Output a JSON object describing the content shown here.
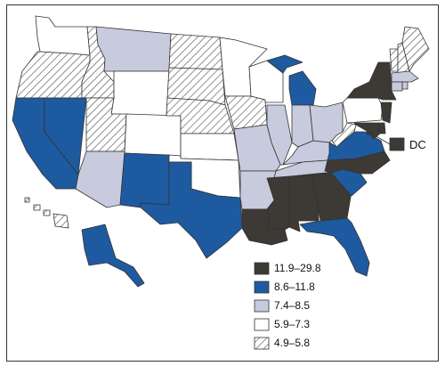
{
  "legend": [
    {
      "range": "11.9–29.8",
      "fill": "#3d3935"
    },
    {
      "range": "8.6–11.8",
      "fill": "#1e5aa0"
    },
    {
      "range": "7.4–8.5",
      "fill": "#c8cadd"
    },
    {
      "range": "5.9–7.3",
      "fill": "#ffffff"
    },
    {
      "range": "4.9–5.8",
      "fill": "hatch"
    }
  ],
  "dc_label": "DC",
  "states": {
    "WA": "5.9–7.3",
    "OR": "4.9–5.8",
    "CA": "8.6–11.8",
    "NV": "8.6–11.8",
    "ID": "4.9–5.8",
    "MT": "7.4–8.5",
    "WY": "5.9–7.3",
    "UT": "4.9–5.8",
    "AZ": "7.4–8.5",
    "CO": "5.9–7.3",
    "NM": "8.6–11.8",
    "ND": "4.9–5.8",
    "SD": "4.9–5.8",
    "NE": "4.9–5.8",
    "KS": "5.9–7.3",
    "OK": "5.9–7.3",
    "TX": "8.6–11.8",
    "MN": "5.9–7.3",
    "IA": "4.9–5.8",
    "MO": "7.4–8.5",
    "AR": "7.4–8.5",
    "LA": "11.9–29.8",
    "WI": "5.9–7.3",
    "IL": "7.4–8.5",
    "MI": "8.6–11.8",
    "IN": "7.4–8.5",
    "OH": "7.4–8.5",
    "KY": "7.4–8.5",
    "TN": "7.4–8.5",
    "MS": "11.9–29.8",
    "AL": "11.9–29.8",
    "GA": "11.9–29.8",
    "FL": "8.6–11.8",
    "SC": "8.6–11.8",
    "NC": "11.9–29.8",
    "VA": "8.6–11.8",
    "WV": "4.9–5.8",
    "PA": "5.9–7.3",
    "NY": "11.9–29.8",
    "VT": "4.9–5.8",
    "NH": "4.9–5.8",
    "ME": "4.9–5.8",
    "MA": "7.4–8.5",
    "CT": "7.4–8.5",
    "RI": "7.4–8.5",
    "NJ": "11.9–29.8",
    "DE": "11.9–29.8",
    "MD": "11.9–29.8",
    "DC": "11.9–29.8",
    "AK": "8.6–11.8",
    "HI": "4.9–5.8"
  }
}
